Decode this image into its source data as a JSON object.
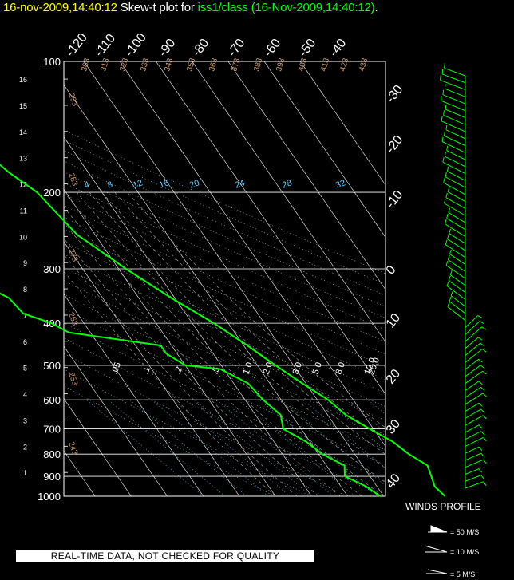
{
  "title": {
    "timestamp": "16-nov-2009,14:40:12",
    "label": "Skew-t plot for",
    "station": "iss1/class",
    "datetime": "(16-Nov-2009,14:40:12)",
    "end": "."
  },
  "warning": "REAL-TIME DATA, NOT CHECKED FOR QUALITY",
  "winds_profile": {
    "title": "WINDS PROFILE",
    "legend": [
      "= 50 M/S",
      "= 10 M/S",
      "= 5 M/S"
    ]
  },
  "colors": {
    "temperature": "#00ff00",
    "dewpoint": "#00ff00",
    "isotherm_labels": "#ffffff",
    "dry_adiabat_labels": "#cc9966",
    "mixing_ratio_labels": "#66ccff",
    "moist_adiabat_labels": "#ffffff",
    "title_timestamp": "#ffff00",
    "title_station": "#00ff00"
  },
  "chart_data": {
    "type": "skew-t",
    "y_scale": "log pressure",
    "pressure_ticks": [
      "100",
      "200",
      "300",
      "400",
      "500",
      "600",
      "700",
      "800",
      "900",
      "1000"
    ],
    "height_ticks_km": [
      "1",
      "2",
      "3",
      "4",
      "5",
      "6",
      "7",
      "8",
      "9",
      "10",
      "11",
      "12",
      "13",
      "14",
      "15",
      "16"
    ],
    "isotherm_top_labels": [
      "-120",
      "-110",
      "-100",
      "-90",
      "-80",
      "-70",
      "-60",
      "-50",
      "-40"
    ],
    "isotherm_right_labels": [
      "-30",
      "-20",
      "-10",
      "0",
      "10",
      "20",
      "30",
      "40"
    ],
    "dry_adiabat_top_labels": [
      "303",
      "313",
      "323",
      "333",
      "343",
      "353",
      "363",
      "373",
      "383",
      "393",
      "403",
      "413",
      "423",
      "433"
    ],
    "dry_adiabat_left_labels": [
      "293",
      "283",
      "273",
      "263",
      "253",
      "243"
    ],
    "mixing_ratio_labels": [
      "4",
      "8",
      "12",
      "16",
      "20",
      "24",
      "28",
      "32"
    ],
    "moist_adiabat_labels": [
      ".05",
      ".1",
      ".2",
      ".5",
      "1.0",
      "2.0",
      "3.0",
      "5.0",
      "8.0",
      "12.0",
      "20.0"
    ],
    "temperature": {
      "name": "temperature",
      "points": [
        [
          1000,
          17
        ],
        [
          950,
          16
        ],
        [
          900,
          17
        ],
        [
          850,
          18
        ],
        [
          800,
          15
        ],
        [
          750,
          13
        ],
        [
          700,
          9
        ],
        [
          650,
          5
        ],
        [
          600,
          3
        ],
        [
          550,
          -1
        ],
        [
          500,
          -5
        ],
        [
          450,
          -9
        ],
        [
          400,
          -14
        ],
        [
          350,
          -21
        ],
        [
          300,
          -28
        ],
        [
          250,
          -35
        ],
        [
          200,
          -38
        ],
        [
          180,
          -42
        ],
        [
          160,
          -45
        ],
        [
          140,
          -49
        ],
        [
          120,
          -50
        ],
        [
          110,
          -53
        ],
        [
          100,
          -50
        ]
      ]
    },
    "dewpoint": {
      "name": "dewpoint",
      "points": [
        [
          1000,
          -1
        ],
        [
          950,
          -3
        ],
        [
          900,
          -7
        ],
        [
          850,
          -5
        ],
        [
          800,
          -9
        ],
        [
          750,
          -11
        ],
        [
          700,
          -15
        ],
        [
          650,
          -13
        ],
        [
          600,
          -15
        ],
        [
          550,
          -16
        ],
        [
          510,
          -21
        ],
        [
          500,
          -30
        ],
        [
          470,
          -33
        ],
        [
          450,
          -33
        ],
        [
          420,
          -56
        ],
        [
          400,
          -59
        ],
        [
          380,
          -65
        ],
        [
          350,
          -66
        ],
        [
          320,
          -72
        ],
        [
          300,
          -76
        ],
        [
          270,
          -80
        ],
        [
          250,
          -78
        ],
        [
          220,
          -85
        ],
        [
          200,
          -82
        ],
        [
          180,
          -86
        ],
        [
          160,
          -84
        ],
        [
          140,
          -85
        ],
        [
          120,
          -88
        ],
        [
          110,
          -90
        ],
        [
          100,
          -90
        ]
      ]
    },
    "winds_profile": {
      "levels": 60,
      "note": "wind barbs from surface to 16 km"
    }
  }
}
